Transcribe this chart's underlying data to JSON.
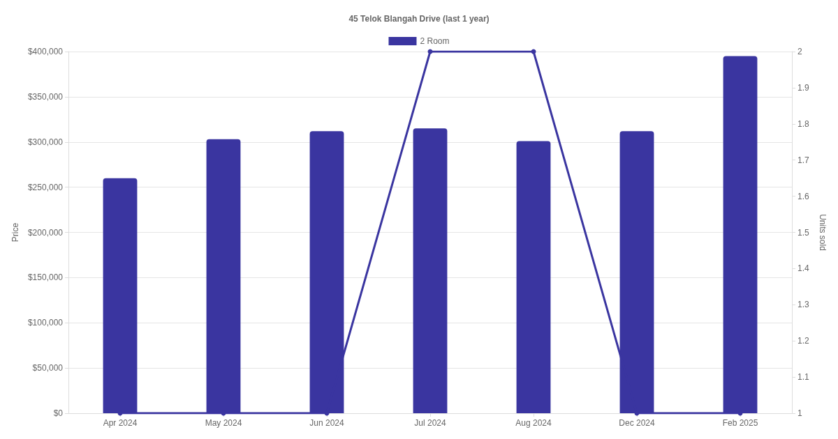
{
  "chart_data": {
    "type": "bar",
    "title": "45 Telok Blangah Drive (last 1 year)",
    "ylabel": "Price",
    "y2label": "Units sold",
    "categories": [
      "Apr 2024",
      "May 2024",
      "Jun 2024",
      "Jul 2024",
      "Aug 2024",
      "Dec 2024",
      "Feb 2025"
    ],
    "series": [
      {
        "name": "2 Room",
        "color": "#3a35a0",
        "values": [
          260000,
          303000,
          312000,
          315000,
          301000,
          312000,
          395000
        ]
      },
      {
        "type": "line",
        "axis": "y2",
        "color": "#3a35a0",
        "values": [
          1,
          1,
          1,
          2,
          2,
          1,
          1
        ]
      }
    ],
    "ylim": [
      0,
      400000
    ],
    "yticks": [
      {
        "value": 0,
        "label": "$0"
      },
      {
        "value": 50000,
        "label": "$50,000"
      },
      {
        "value": 100000,
        "label": "$100,000"
      },
      {
        "value": 150000,
        "label": "$150,000"
      },
      {
        "value": 200000,
        "label": "$200,000"
      },
      {
        "value": 250000,
        "label": "$250,000"
      },
      {
        "value": 300000,
        "label": "$300,000"
      },
      {
        "value": 350000,
        "label": "$350,000"
      },
      {
        "value": 400000,
        "label": "$400,000"
      }
    ],
    "y2lim": [
      1,
      2
    ],
    "y2ticks": [
      1,
      1.1,
      1.2,
      1.3,
      1.4,
      1.5,
      1.6,
      1.7,
      1.8,
      1.9,
      2
    ],
    "grid": "y",
    "legend": "top",
    "marker": "circle"
  }
}
